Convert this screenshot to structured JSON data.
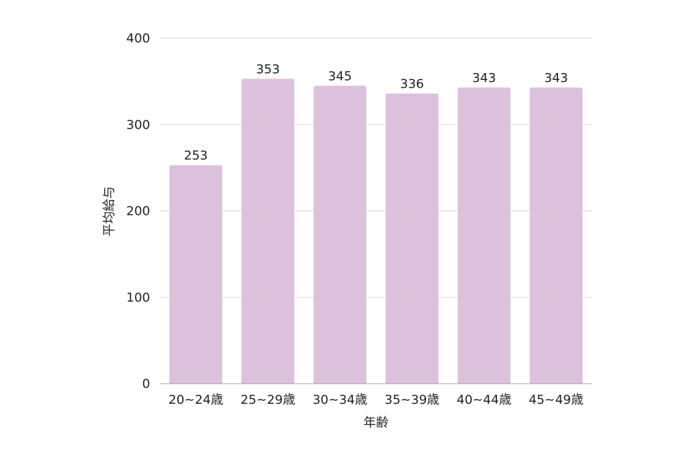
{
  "chart_data": {
    "type": "bar",
    "title": "",
    "xlabel": "年齢",
    "ylabel": "平均給与",
    "categories": [
      "20~24歳",
      "25~29歳",
      "30~34歳",
      "35~39歳",
      "40~44歳",
      "45~49歳"
    ],
    "values": [
      253,
      353,
      345,
      336,
      343,
      343
    ],
    "data_labels": [
      "253",
      "353",
      "345",
      "336",
      "343",
      "343"
    ],
    "ylim": [
      0,
      400
    ],
    "yticks": [
      0,
      100,
      200,
      300,
      400
    ],
    "ytick_labels": [
      "0",
      "100",
      "200",
      "300",
      "400"
    ],
    "grid": true,
    "legend": "none",
    "colors": {
      "bar": "#dcc1dc",
      "grid": "#d9d9d9",
      "axis": "#9e9e9e",
      "text": "#222222"
    }
  }
}
